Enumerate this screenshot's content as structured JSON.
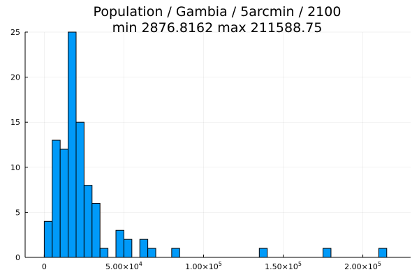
{
  "chart_data": {
    "type": "bar",
    "title_lines": [
      "Population / Gambia / 5arcmin / 2100",
      "min 2876.8162  max 211588.75"
    ],
    "xlabel": "",
    "ylabel": "",
    "xlim": [
      -12000,
      230000
    ],
    "ylim": [
      0,
      25
    ],
    "grid": true,
    "legend": "none",
    "bar_color": "#009af9",
    "bin_width": 5000,
    "bins": [
      {
        "start": 0,
        "count": 4
      },
      {
        "start": 5000,
        "count": 13
      },
      {
        "start": 10000,
        "count": 12
      },
      {
        "start": 15000,
        "count": 25
      },
      {
        "start": 20000,
        "count": 15
      },
      {
        "start": 25000,
        "count": 8
      },
      {
        "start": 30000,
        "count": 6
      },
      {
        "start": 35000,
        "count": 1
      },
      {
        "start": 45000,
        "count": 3
      },
      {
        "start": 50000,
        "count": 2
      },
      {
        "start": 60000,
        "count": 2
      },
      {
        "start": 65000,
        "count": 1
      },
      {
        "start": 80000,
        "count": 1
      },
      {
        "start": 135000,
        "count": 1
      },
      {
        "start": 175000,
        "count": 1
      },
      {
        "start": 210000,
        "count": 1
      }
    ],
    "x_ticks": [
      {
        "value": 0,
        "mantissa": "0",
        "exp": ""
      },
      {
        "value": 50000,
        "mantissa": "5.00×10",
        "exp": "4"
      },
      {
        "value": 100000,
        "mantissa": "1.00×10",
        "exp": "5"
      },
      {
        "value": 150000,
        "mantissa": "1.50×10",
        "exp": "5"
      },
      {
        "value": 200000,
        "mantissa": "2.00×10",
        "exp": "5"
      }
    ],
    "y_ticks": [
      0,
      5,
      10,
      15,
      20,
      25
    ]
  }
}
